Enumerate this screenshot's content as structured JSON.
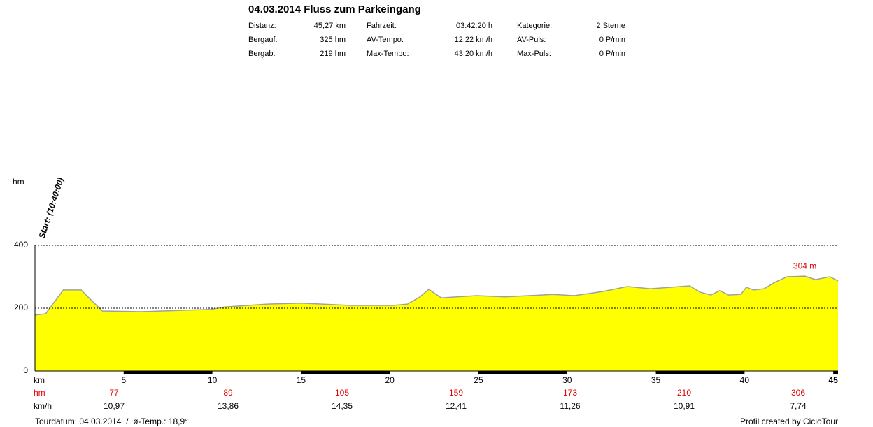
{
  "header": {
    "title": "04.03.2014 Fluss zum Parkeingang",
    "stats": [
      [
        {
          "label": "Distanz:",
          "value": "45,27 km"
        },
        {
          "label": "Fahrzeit:",
          "value": "03:42:20 h"
        },
        {
          "label": "Kategorie:",
          "value": "2 Sterne"
        }
      ],
      [
        {
          "label": "Bergauf:",
          "value": "325 hm"
        },
        {
          "label": "AV-Tempo:",
          "value": "12,22 km/h"
        },
        {
          "label": "AV-Puls:",
          "value": "0 P/min"
        }
      ],
      [
        {
          "label": "Bergab:",
          "value": "219 hm"
        },
        {
          "label": "Max-Tempo:",
          "value": "43,20 km/h"
        },
        {
          "label": "Max-Puls:",
          "value": "0 P/min"
        }
      ]
    ]
  },
  "chart_data": {
    "type": "area",
    "y_label": "hm",
    "x_label": "km",
    "start_label": "Start: (10:40:00)",
    "annotation": "304 m",
    "color": "#ffff00",
    "line_color": "#a0a0a0",
    "x": [
      0,
      0.6,
      1.0,
      1.6,
      2.6,
      3.2,
      3.8,
      6.0,
      9.9,
      10.7,
      13.1,
      15.0,
      17.8,
      20.2,
      21.0,
      21.7,
      22.2,
      22.9,
      24.9,
      26.5,
      29.2,
      30.4,
      32.0,
      33.4,
      34.7,
      36.9,
      37.5,
      38.1,
      38.6,
      39.1,
      39.8,
      40.1,
      40.5,
      41.1,
      41.7,
      42.4,
      43.4,
      44.0,
      44.8,
      45.27
    ],
    "values": [
      178,
      182,
      213,
      258,
      258,
      224,
      191,
      189,
      196,
      204,
      213,
      216,
      209,
      209,
      213,
      236,
      260,
      233,
      240,
      236,
      244,
      240,
      253,
      269,
      262,
      271,
      251,
      242,
      256,
      242,
      244,
      267,
      258,
      262,
      282,
      300,
      302,
      291,
      300,
      287
    ],
    "xlim": [
      0,
      45.27
    ],
    "ylim": [
      0,
      400
    ],
    "yticks": [
      0,
      200,
      400
    ],
    "xticks": [
      5,
      10,
      15,
      20,
      25,
      30,
      35,
      40,
      45
    ],
    "grid": true,
    "hm_row": {
      "label": "hm",
      "values": [
        77,
        89,
        105,
        159,
        173,
        210,
        306
      ]
    },
    "speed_row": {
      "label": "km/h",
      "values": [
        "10,97",
        "13,86",
        "14,35",
        "12,41",
        "11,26",
        "10,91",
        "7,74"
      ]
    }
  },
  "footer": {
    "left": "Tourdatum: 04.03.2014  /  ø-Temp.: 18,9°",
    "right": "Profil created by CicloTour"
  }
}
